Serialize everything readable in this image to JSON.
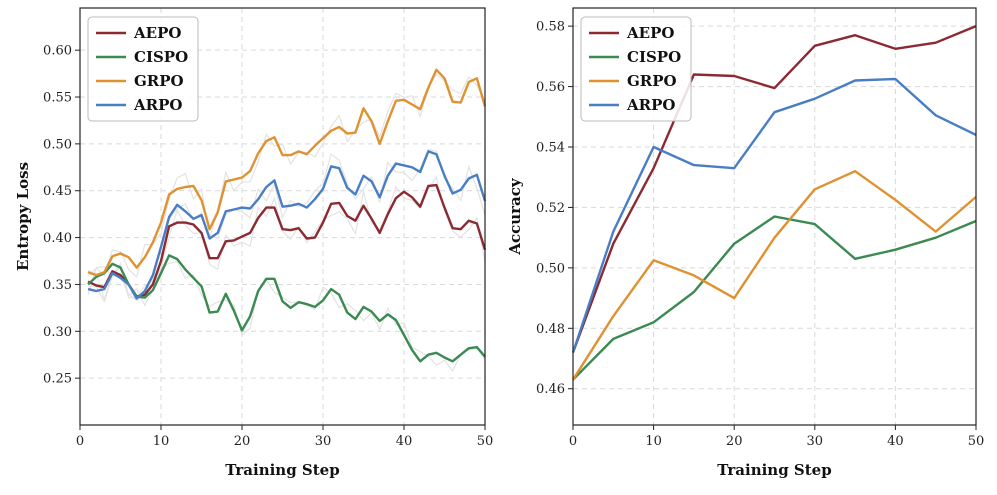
{
  "chart_data": [
    {
      "type": "line",
      "xlabel": "Training Step",
      "ylabel": "Entropy Loss",
      "xlim": [
        0,
        50
      ],
      "ylim": [
        0.2,
        0.645
      ],
      "xticks": [
        0,
        10,
        20,
        30,
        40,
        50
      ],
      "yticks": [
        0.25,
        0.3,
        0.35,
        0.4,
        0.45,
        0.5,
        0.55,
        0.6
      ],
      "grid": true,
      "legend_position": "top-left",
      "x": [
        1,
        2,
        3,
        4,
        5,
        6,
        7,
        8,
        9,
        10,
        11,
        12,
        13,
        14,
        15,
        16,
        17,
        18,
        19,
        20,
        21,
        22,
        23,
        24,
        25,
        26,
        27,
        28,
        29,
        30,
        31,
        32,
        33,
        34,
        35,
        36,
        37,
        38,
        39,
        40,
        41,
        42,
        43,
        44,
        45,
        46,
        47,
        48,
        49,
        50
      ],
      "series": [
        {
          "name": "AEPO",
          "color": "#8b2a32",
          "values": [
            0.353,
            0.349,
            0.347,
            0.364,
            0.36,
            0.35,
            0.337,
            0.339,
            0.35,
            0.375,
            0.412,
            0.416,
            0.416,
            0.414,
            0.405,
            0.378,
            0.378,
            0.396,
            0.397,
            0.401,
            0.405,
            0.421,
            0.432,
            0.432,
            0.409,
            0.408,
            0.41,
            0.399,
            0.4,
            0.416,
            0.436,
            0.437,
            0.423,
            0.418,
            0.434,
            0.42,
            0.405,
            0.425,
            0.442,
            0.449,
            0.443,
            0.433,
            0.455,
            0.456,
            0.432,
            0.41,
            0.409,
            0.418,
            0.415,
            0.387
          ]
        },
        {
          "name": "CISPO",
          "color": "#3a8a52",
          "values": [
            0.35,
            0.358,
            0.362,
            0.372,
            0.368,
            0.35,
            0.337,
            0.336,
            0.344,
            0.362,
            0.381,
            0.377,
            0.366,
            0.357,
            0.348,
            0.32,
            0.321,
            0.34,
            0.322,
            0.301,
            0.316,
            0.343,
            0.356,
            0.356,
            0.332,
            0.325,
            0.331,
            0.329,
            0.326,
            0.333,
            0.345,
            0.339,
            0.32,
            0.313,
            0.326,
            0.321,
            0.311,
            0.318,
            0.312,
            0.296,
            0.28,
            0.268,
            0.275,
            0.277,
            0.272,
            0.268,
            0.275,
            0.282,
            0.283,
            0.273
          ]
        },
        {
          "name": "GRPO",
          "color": "#de9232",
          "values": [
            0.363,
            0.36,
            0.363,
            0.38,
            0.383,
            0.379,
            0.368,
            0.379,
            0.395,
            0.416,
            0.446,
            0.452,
            0.454,
            0.455,
            0.44,
            0.409,
            0.427,
            0.46,
            0.462,
            0.464,
            0.471,
            0.49,
            0.503,
            0.507,
            0.488,
            0.488,
            0.492,
            0.489,
            0.498,
            0.506,
            0.514,
            0.518,
            0.511,
            0.512,
            0.538,
            0.524,
            0.5,
            0.524,
            0.546,
            0.547,
            0.542,
            0.537,
            0.56,
            0.579,
            0.57,
            0.545,
            0.544,
            0.566,
            0.57,
            0.54
          ]
        },
        {
          "name": "ARPO",
          "color": "#4a7ec4",
          "values": [
            0.345,
            0.343,
            0.345,
            0.362,
            0.357,
            0.35,
            0.335,
            0.343,
            0.36,
            0.39,
            0.422,
            0.435,
            0.428,
            0.42,
            0.424,
            0.399,
            0.405,
            0.428,
            0.43,
            0.432,
            0.431,
            0.441,
            0.454,
            0.461,
            0.433,
            0.434,
            0.436,
            0.432,
            0.441,
            0.452,
            0.476,
            0.474,
            0.453,
            0.446,
            0.466,
            0.46,
            0.443,
            0.466,
            0.479,
            0.477,
            0.475,
            0.47,
            0.492,
            0.489,
            0.466,
            0.447,
            0.451,
            0.463,
            0.467,
            0.439
          ]
        }
      ]
    },
    {
      "type": "line",
      "xlabel": "Training Step",
      "ylabel": "Accuracy",
      "xlim": [
        0,
        50
      ],
      "ylim": [
        0.448,
        0.586
      ],
      "xticks": [
        0,
        10,
        20,
        30,
        40,
        50
      ],
      "yticks": [
        0.46,
        0.48,
        0.5,
        0.52,
        0.54,
        0.56,
        0.58
      ],
      "grid": true,
      "legend_position": "top-left",
      "x": [
        0,
        5,
        10,
        15,
        20,
        25,
        30,
        35,
        40,
        45,
        50
      ],
      "series": [
        {
          "name": "AEPO",
          "color": "#8b2a32",
          "values": [
            0.472,
            0.508,
            0.533,
            0.564,
            0.5635,
            0.5595,
            0.5735,
            0.577,
            0.5725,
            0.5745,
            0.58
          ]
        },
        {
          "name": "CISPO",
          "color": "#3a8a52",
          "values": [
            0.463,
            0.4765,
            0.482,
            0.492,
            0.508,
            0.517,
            0.5145,
            0.503,
            0.506,
            0.51,
            0.5155
          ]
        },
        {
          "name": "GRPO",
          "color": "#de9232",
          "values": [
            0.463,
            0.484,
            0.5025,
            0.4975,
            0.49,
            0.51,
            0.526,
            0.532,
            0.5225,
            0.512,
            0.5235
          ]
        },
        {
          "name": "ARPO",
          "color": "#4a7ec4",
          "values": [
            0.472,
            0.512,
            0.54,
            0.534,
            0.533,
            0.5515,
            0.556,
            0.562,
            0.5625,
            0.5505,
            0.544
          ]
        }
      ]
    }
  ]
}
